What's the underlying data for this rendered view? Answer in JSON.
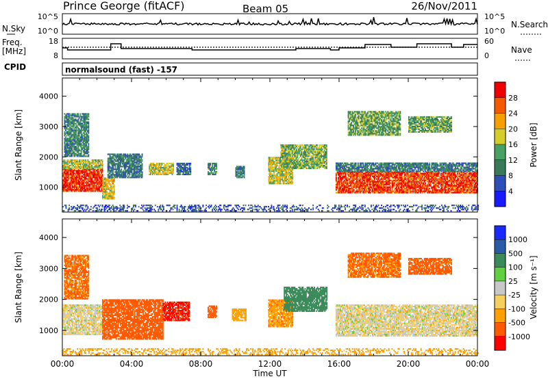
{
  "header": {
    "station": "Prince George (fitACF)",
    "beam": "Beam 05",
    "date": "26/Nov/2011"
  },
  "top_panels": {
    "nsky_label": "N.Sky",
    "nsearch_label": "N.Search",
    "nsky_ticks": [
      "10^5",
      "10^0"
    ],
    "nsearch_ticks": [
      "10^5",
      "10^0"
    ],
    "freq_label_1": "Freq.",
    "freq_label_2": "[MHz]",
    "freq_ticks": [
      "18",
      "8"
    ],
    "nave_label": "Nave",
    "nave_ticks": [
      "60",
      "0"
    ],
    "cpid_label": "CPID",
    "cpid_value": "normalsound (fast) -157"
  },
  "colors": {
    "power_scale": [
      "#1a1aff",
      "#2f4fb8",
      "#3a7a5a",
      "#49a064",
      "#d6cc2a",
      "#f5a000",
      "#f55a00",
      "#f00000"
    ],
    "velocity_scale": [
      "#ff0000",
      "#ff5a00",
      "#ffa000",
      "#f5d060",
      "#c8c8c8",
      "#60d040",
      "#3a8a5a",
      "#2a5aa8",
      "#1a2aff"
    ]
  },
  "chart_data": [
    {
      "type": "heatmap",
      "name": "power",
      "ylabel": "Slant Range [km]",
      "y_ticks": [
        "1000",
        "2000",
        "3000",
        "4000"
      ],
      "ylim": [
        180,
        4600
      ],
      "xlim": [
        0,
        24
      ],
      "colorbar": {
        "label": "Power [dB]",
        "ticks": [
          "4",
          "8",
          "12",
          "16",
          "20",
          "24",
          "28"
        ],
        "range": [
          0,
          30
        ]
      },
      "regions": [
        {
          "t": [
            0.0,
            2.3
          ],
          "r": [
            850,
            1600
          ],
          "v": 27
        },
        {
          "t": [
            0.0,
            2.3
          ],
          "r": [
            1600,
            1900
          ],
          "v": 16
        },
        {
          "t": [
            0.1,
            1.5
          ],
          "r": [
            2000,
            3400
          ],
          "v": 10
        },
        {
          "t": [
            2.3,
            3.0
          ],
          "r": [
            600,
            1300
          ],
          "v": 18
        },
        {
          "t": [
            2.6,
            4.6
          ],
          "r": [
            1300,
            2100
          ],
          "v": 9
        },
        {
          "t": [
            5.0,
            6.4
          ],
          "r": [
            1400,
            1800
          ],
          "v": 17
        },
        {
          "t": [
            6.6,
            7.4
          ],
          "r": [
            1400,
            1800
          ],
          "v": 8
        },
        {
          "t": [
            8.4,
            8.9
          ],
          "r": [
            1400,
            1800
          ],
          "v": 11
        },
        {
          "t": [
            10.0,
            10.5
          ],
          "r": [
            1300,
            1700
          ],
          "v": 9
        },
        {
          "t": [
            11.9,
            13.3
          ],
          "r": [
            1100,
            2000
          ],
          "v": 17
        },
        {
          "t": [
            12.6,
            15.3
          ],
          "r": [
            1600,
            2400
          ],
          "v": 14
        },
        {
          "t": [
            15.8,
            24.0
          ],
          "r": [
            800,
            1500
          ],
          "v": 26
        },
        {
          "t": [
            15.8,
            24.0
          ],
          "r": [
            1500,
            1800
          ],
          "v": 9
        },
        {
          "t": [
            16.5,
            19.5
          ],
          "r": [
            2700,
            3500
          ],
          "v": 13
        },
        {
          "t": [
            20.0,
            22.5
          ],
          "r": [
            2800,
            3300
          ],
          "v": 13
        },
        {
          "t": [
            0.0,
            24.0
          ],
          "r": [
            200,
            420
          ],
          "v": 6
        }
      ]
    },
    {
      "type": "heatmap",
      "name": "velocity",
      "ylabel": "Slant Range [km]",
      "xlabel": "Time UT",
      "x_ticks": [
        "00:00",
        "04:00",
        "08:00",
        "12:00",
        "16:00",
        "20:00",
        "00:00"
      ],
      "y_ticks": [
        "1000",
        "2000",
        "3000",
        "4000"
      ],
      "ylim": [
        180,
        4600
      ],
      "xlim": [
        0,
        24
      ],
      "colorbar": {
        "label": "Velocity [m s⁻¹]",
        "ticks": [
          "1000",
          "500",
          "100",
          "25",
          "-25",
          "-100",
          "-500",
          "-1000"
        ]
      },
      "regions": [
        {
          "t": [
            0.0,
            2.3
          ],
          "r": [
            850,
            1800
          ],
          "v": 0
        },
        {
          "t": [
            0.1,
            1.5
          ],
          "r": [
            2000,
            3400
          ],
          "v": -120
        },
        {
          "t": [
            2.3,
            5.8
          ],
          "r": [
            700,
            2000
          ],
          "v": -300
        },
        {
          "t": [
            5.8,
            7.3
          ],
          "r": [
            1300,
            1900
          ],
          "v": -600
        },
        {
          "t": [
            8.4,
            8.9
          ],
          "r": [
            1400,
            1800
          ],
          "v": -200
        },
        {
          "t": [
            9.8,
            10.6
          ],
          "r": [
            1300,
            1700
          ],
          "v": -60
        },
        {
          "t": [
            11.9,
            13.3
          ],
          "r": [
            1100,
            2000
          ],
          "v": -80
        },
        {
          "t": [
            12.8,
            15.3
          ],
          "r": [
            1600,
            2400
          ],
          "v": 300
        },
        {
          "t": [
            15.8,
            24.0
          ],
          "r": [
            800,
            1800
          ],
          "v": 0
        },
        {
          "t": [
            16.5,
            19.5
          ],
          "r": [
            2700,
            3500
          ],
          "v": -120
        },
        {
          "t": [
            20.0,
            22.5
          ],
          "r": [
            2800,
            3300
          ],
          "v": -150
        },
        {
          "t": [
            0.0,
            24.0
          ],
          "r": [
            200,
            420
          ],
          "v": -50
        }
      ]
    }
  ]
}
